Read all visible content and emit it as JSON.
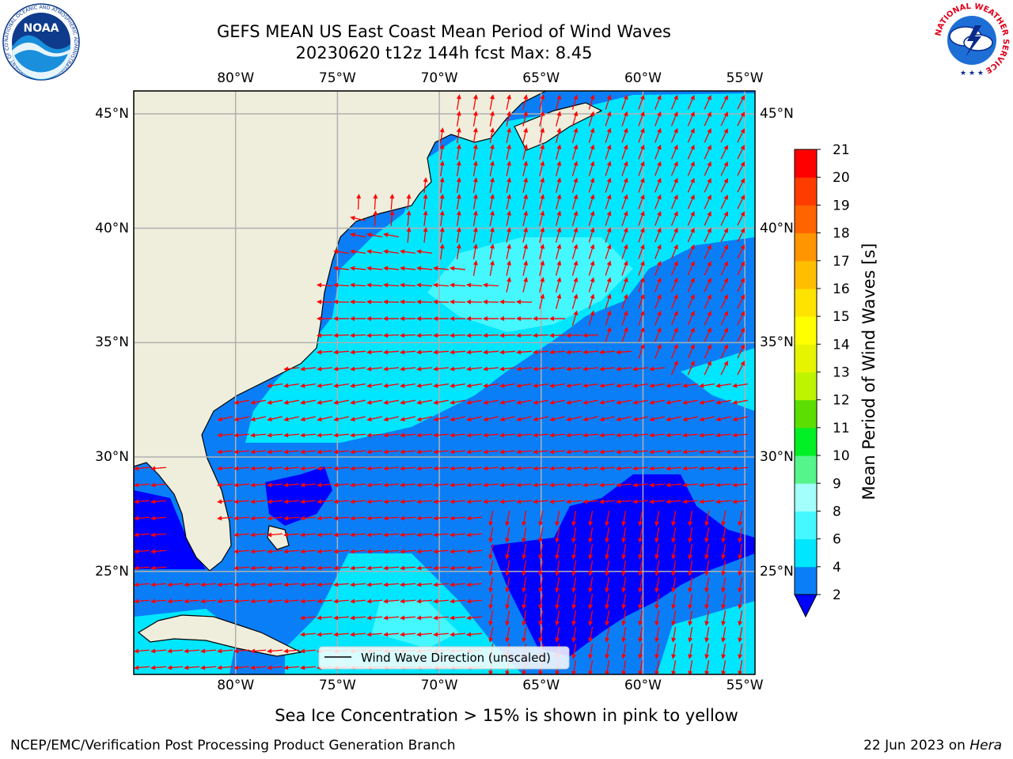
{
  "header": {
    "title_line1": "GEFS MEAN US East Coast Mean Period of Wind Waves",
    "title_line2": "20230620 t12z 144h fcst   Max: 8.45"
  },
  "logos": {
    "noaa_text": "NOAA",
    "noaa_ring_text": "NATIONAL OCEANIC AND ATMOSPHERIC ADMINISTRATION · U.S. DEPARTMENT OF COMMERCE",
    "nws_ring_text": "NATIONAL WEATHER SERVICE"
  },
  "map": {
    "region": "US East Coast / Western North Atlantic",
    "lon_ticks": [
      "80°W",
      "75°W",
      "70°W",
      "65°W",
      "60°W",
      "55°W"
    ],
    "lat_ticks": [
      "45°N",
      "40°N",
      "35°N",
      "30°N",
      "25°N"
    ],
    "lon_range": [
      -85,
      -54.5
    ],
    "lat_range": [
      20.5,
      46
    ],
    "grid": true,
    "legend_label": "Wind Wave Direction (unscaled)",
    "vector_color": "#ff0000",
    "land_color": "#efeedc"
  },
  "colorbar": {
    "label": "Mean Period of Wind Waves [s]",
    "ticks": [
      "2",
      "4",
      "6",
      "8",
      "9",
      "10",
      "11",
      "12",
      "13",
      "14",
      "15",
      "16",
      "17",
      "18",
      "19",
      "20",
      "21"
    ],
    "colors": [
      "#0a7ef7",
      "#00e6ff",
      "#45f7ff",
      "#a2fffb",
      "#56f58b",
      "#00ef25",
      "#5cde03",
      "#bff400",
      "#e7f400",
      "#ffff00",
      "#ffe300",
      "#ffbe00",
      "#ff9500",
      "#ff6400",
      "#ff3c00",
      "#ff0000"
    ],
    "under_color": "#0000ff"
  },
  "footer": {
    "note": "Sea Ice Concentration > 15% is shown in pink to yellow",
    "credit": "NCEP/EMC/Verification Post Processing Product Generation Branch",
    "date": "22 Jun 2023 on ",
    "machine": "Hera"
  }
}
